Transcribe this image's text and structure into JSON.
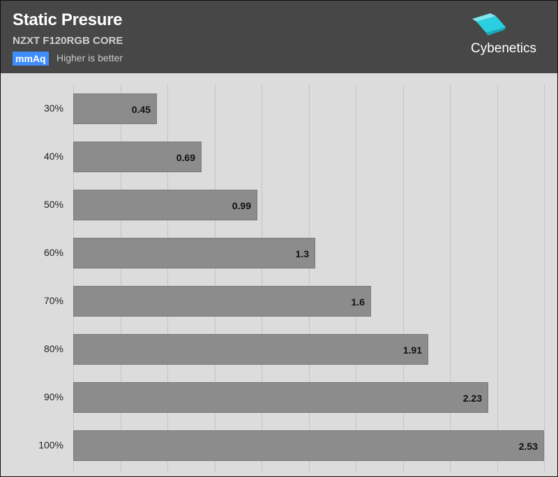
{
  "header": {
    "title": "Static Presure",
    "subtitle": "NZXT F120RGB CORE",
    "unit_badge": "mmAq",
    "note": "Higher is better",
    "logo_text": "Cybenetics"
  },
  "colors": {
    "header_bg": "#474747",
    "plot_bg": "#dcdcdc",
    "bar": "#8c8c8c",
    "unit_badge": "#3f8efc",
    "logo_cube": "#2ad0e0"
  },
  "chart_data": {
    "type": "bar",
    "orientation": "horizontal",
    "title": "Static Presure",
    "subtitle": "NZXT F120RGB CORE",
    "unit": "mmAq",
    "categories": [
      "30%",
      "40%",
      "50%",
      "60%",
      "70%",
      "80%",
      "90%",
      "100%"
    ],
    "values": [
      0.45,
      0.69,
      0.99,
      1.3,
      1.6,
      1.91,
      2.23,
      2.53
    ],
    "value_labels": [
      "0.45",
      "0.69",
      "0.99",
      "1.3",
      "1.6",
      "1.91",
      "2.23",
      "2.53"
    ],
    "xlim": [
      0,
      2.55
    ],
    "grid": true
  }
}
